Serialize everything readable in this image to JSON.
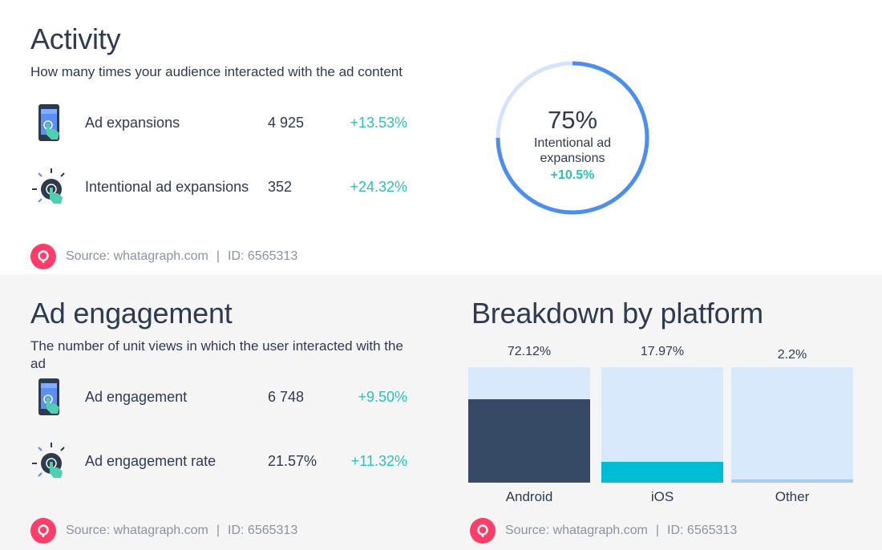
{
  "activity": {
    "title": "Activity",
    "subtitle": "How many times your audience interacted with the ad content",
    "metrics": [
      {
        "label": "Ad expansions",
        "value": "4 925",
        "change": "+13.53%",
        "icon": "phone-touch-icon"
      },
      {
        "label": "Intentional ad expansions",
        "value": "352",
        "change": "+24.32%",
        "icon": "tap-gesture-icon"
      }
    ],
    "donut": {
      "percent": "75%",
      "label": "Intentional ad expansions",
      "change": "+10.5%",
      "fraction": 0.75
    },
    "source": {
      "text": "Source: whatagraph.com",
      "separator": "|",
      "id": "ID: 6565313"
    }
  },
  "engagement": {
    "title": "Ad engagement",
    "subtitle": "The number of unit views in which the user interacted with the ad",
    "metrics": [
      {
        "label": "Ad engagement",
        "value": "6 748",
        "change": "+9.50%",
        "icon": "phone-touch-icon"
      },
      {
        "label": "Ad engagement rate",
        "value": "21.57%",
        "change": "+11.32%",
        "icon": "tap-gesture-icon"
      }
    ],
    "source": {
      "text": "Source: whatagraph.com",
      "separator": "|",
      "id": "ID: 6565313"
    }
  },
  "platform": {
    "title": "Breakdown by platform",
    "source": {
      "text": "Source: whatagraph.com",
      "separator": "|",
      "id": "ID: 6565313"
    }
  },
  "chart_data": {
    "type": "bar",
    "categories": [
      "Android",
      "iOS",
      "Other"
    ],
    "values": [
      72.12,
      17.97,
      2.2
    ],
    "value_labels": [
      "72.12%",
      "17.97%",
      "2.2%"
    ],
    "colors": [
      "#364a66",
      "#00bcd4",
      "#a8c9f2"
    ],
    "track_color": "#d9e9fc",
    "note_on_scale": "bars filled relative to largest value; track represents full height"
  },
  "colors": {
    "accent_teal": "#27c4b7",
    "donut_blue": "#4c8ef0",
    "donut_track": "#d6e4fa",
    "logo_pink": "#ff3d68",
    "text_dark": "#2e3b4e",
    "text_muted": "#8a93a0"
  }
}
